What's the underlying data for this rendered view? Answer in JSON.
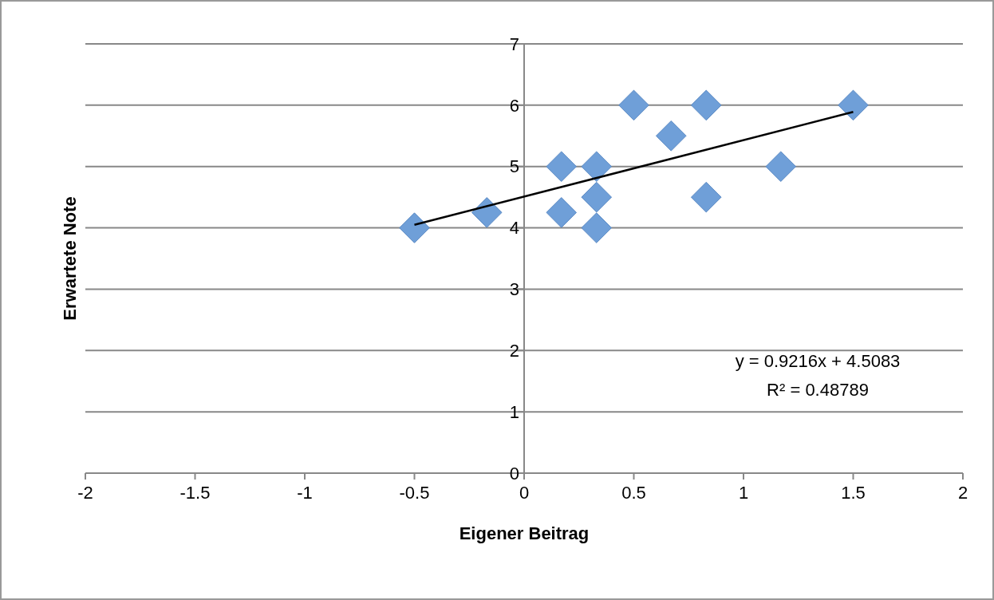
{
  "chart_data": {
    "type": "scatter",
    "xlabel": "Eigener Beitrag",
    "ylabel": "Erwartete Note",
    "xlim": [
      -2,
      2
    ],
    "xticks": [
      -2,
      -1.5,
      -1,
      -0.5,
      0,
      0.5,
      1,
      1.5,
      2
    ],
    "ylim": [
      0,
      7
    ],
    "yticks": [
      0,
      1,
      2,
      3,
      4,
      5,
      6,
      7
    ],
    "grid": "y",
    "marker": "diamond",
    "series": [
      {
        "color": "#6f9fd8",
        "x": [
          -0.5,
          -0.17,
          0.17,
          0.17,
          0.33,
          0.33,
          0.33,
          0.5,
          0.67,
          0.83,
          0.83,
          1.17,
          1.5
        ],
        "values": [
          4,
          4.25,
          5,
          4.25,
          5,
          4.5,
          4,
          6,
          5.5,
          6,
          4.5,
          5,
          6
        ]
      },
      {
        "type": "line",
        "marker": "none",
        "color": "#000000",
        "x": [
          -0.5,
          1.5
        ],
        "values": [
          4.05,
          5.89
        ]
      }
    ],
    "annotations": [
      "y = 0.9216x + 4.5083",
      "R² = 0.48789"
    ]
  }
}
